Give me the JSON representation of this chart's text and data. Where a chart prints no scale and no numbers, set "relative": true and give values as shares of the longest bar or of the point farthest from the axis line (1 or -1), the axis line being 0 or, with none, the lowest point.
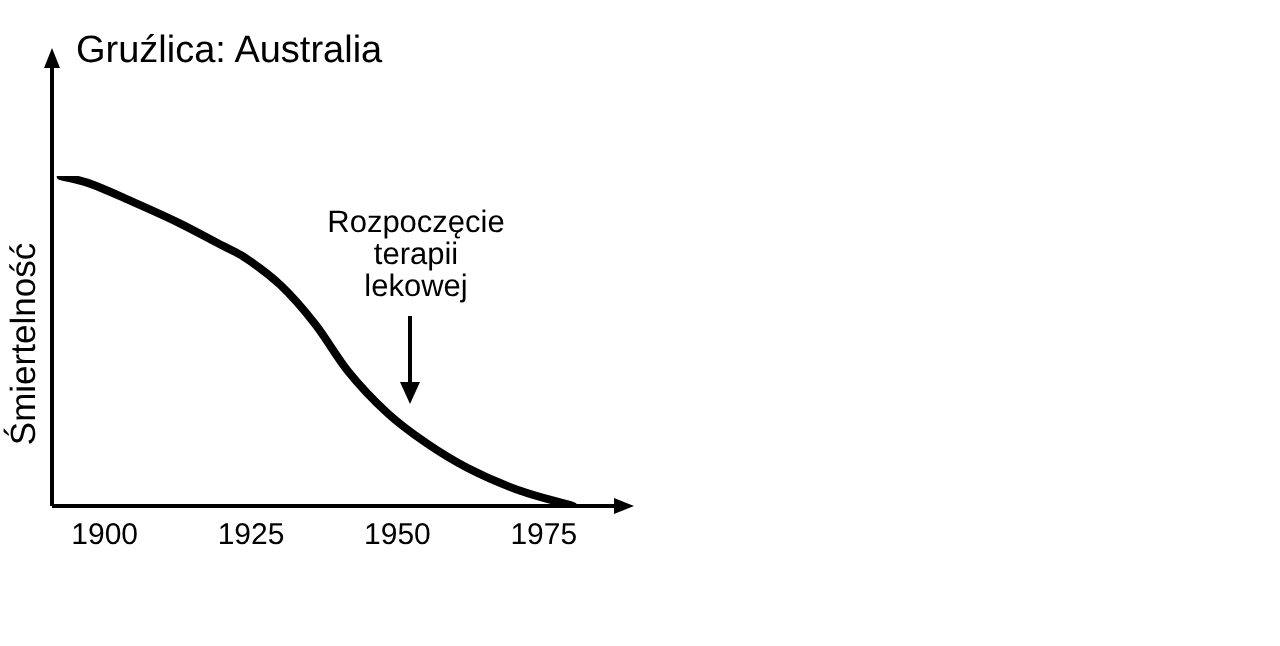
{
  "chart_data": {
    "type": "line",
    "title": "Gruźlica: Australia",
    "ylabel": "Śmiertelność",
    "relative": true,
    "x": [
      1892.5,
      1897,
      1905,
      1913,
      1920,
      1923.3,
      1930,
      1936,
      1941.5,
      1948.4,
      1955,
      1962,
      1971,
      1980
    ],
    "series": [
      {
        "color": "#000000",
        "values": [
          1,
          0.98,
          0.92,
          0.855,
          0.79,
          0.76,
          0.67,
          0.55,
          0.41,
          0.28,
          0.19,
          0.115,
          0.046,
          0
        ]
      }
    ],
    "xlim": [
      1891,
      1987
    ],
    "xticks": [
      1900,
      1925,
      1950,
      1975
    ],
    "annotations": [
      "Rozpoczęcie terapii lekowej"
    ],
    "grid": false,
    "legend": false,
    "marker": "none",
    "line_style": "solid"
  }
}
